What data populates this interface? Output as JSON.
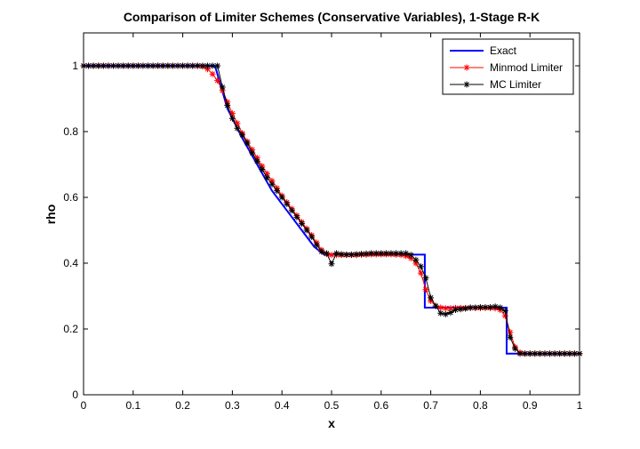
{
  "chart_data": {
    "type": "line",
    "title": "Comparison of Limiter Schemes (Conservative Variables), 1-Stage R-K",
    "xlabel": "x",
    "ylabel": "rho",
    "xlim": [
      0,
      1
    ],
    "ylim": [
      0,
      1.1
    ],
    "x_ticks": [
      "0",
      "0.1",
      "0.2",
      "0.3",
      "0.4",
      "0.5",
      "0.6",
      "0.7",
      "0.8",
      "0.9",
      "1"
    ],
    "y_ticks": [
      "0",
      "0.2",
      "0.4",
      "0.6",
      "0.8",
      "1"
    ],
    "grid": false,
    "legend_position": "top-right",
    "series": [
      {
        "name": "Exact",
        "color": "#0000ff",
        "marker": "none",
        "x": [
          0,
          0.265,
          0.29,
          0.32,
          0.35,
          0.38,
          0.41,
          0.44,
          0.465,
          0.485,
          0.688,
          0.688,
          0.853,
          0.853,
          1.0
        ],
        "y": [
          1.0,
          1.0,
          0.87,
          0.78,
          0.7,
          0.62,
          0.56,
          0.5,
          0.45,
          0.426,
          0.426,
          0.265,
          0.265,
          0.125,
          0.125
        ]
      },
      {
        "name": "Minmod Limiter",
        "color": "#ff0000",
        "marker": "star",
        "x": [
          0,
          0.01,
          0.02,
          0.03,
          0.04,
          0.05,
          0.06,
          0.07,
          0.08,
          0.09,
          0.1,
          0.11,
          0.12,
          0.13,
          0.14,
          0.15,
          0.16,
          0.17,
          0.18,
          0.19,
          0.2,
          0.21,
          0.22,
          0.23,
          0.24,
          0.25,
          0.26,
          0.27,
          0.28,
          0.29,
          0.3,
          0.31,
          0.32,
          0.33,
          0.34,
          0.35,
          0.36,
          0.37,
          0.38,
          0.39,
          0.4,
          0.41,
          0.42,
          0.43,
          0.44,
          0.45,
          0.46,
          0.47,
          0.48,
          0.49,
          0.5,
          0.51,
          0.52,
          0.53,
          0.54,
          0.55,
          0.56,
          0.57,
          0.58,
          0.59,
          0.6,
          0.61,
          0.62,
          0.63,
          0.64,
          0.65,
          0.66,
          0.67,
          0.68,
          0.69,
          0.7,
          0.71,
          0.72,
          0.73,
          0.74,
          0.75,
          0.76,
          0.77,
          0.78,
          0.79,
          0.8,
          0.81,
          0.82,
          0.83,
          0.84,
          0.85,
          0.86,
          0.87,
          0.88,
          0.89,
          0.9,
          0.91,
          0.92,
          0.93,
          0.94,
          0.95,
          0.96,
          0.97,
          0.98,
          0.99,
          1.0
        ],
        "y": [
          1.0,
          1.0,
          1.0,
          1.0,
          1.0,
          1.0,
          1.0,
          1.0,
          1.0,
          1.0,
          1.0,
          1.0,
          1.0,
          1.0,
          1.0,
          1.0,
          1.0,
          1.0,
          1.0,
          1.0,
          1.0,
          1.0,
          1.0,
          1.0,
          0.998,
          0.99,
          0.975,
          0.955,
          0.925,
          0.89,
          0.855,
          0.825,
          0.795,
          0.77,
          0.745,
          0.72,
          0.695,
          0.672,
          0.65,
          0.628,
          0.605,
          0.585,
          0.565,
          0.545,
          0.525,
          0.505,
          0.485,
          0.462,
          0.44,
          0.428,
          0.425,
          0.425,
          0.425,
          0.425,
          0.425,
          0.425,
          0.426,
          0.426,
          0.427,
          0.427,
          0.427,
          0.427,
          0.427,
          0.426,
          0.425,
          0.422,
          0.415,
          0.4,
          0.37,
          0.32,
          0.285,
          0.27,
          0.265,
          0.263,
          0.263,
          0.264,
          0.264,
          0.264,
          0.264,
          0.264,
          0.264,
          0.264,
          0.264,
          0.263,
          0.258,
          0.24,
          0.19,
          0.145,
          0.128,
          0.125,
          0.125,
          0.125,
          0.125,
          0.125,
          0.125,
          0.125,
          0.125,
          0.125,
          0.125,
          0.125,
          0.125
        ]
      },
      {
        "name": "MC Limiter",
        "color": "#000000",
        "marker": "star",
        "x": [
          0,
          0.01,
          0.02,
          0.03,
          0.04,
          0.05,
          0.06,
          0.07,
          0.08,
          0.09,
          0.1,
          0.11,
          0.12,
          0.13,
          0.14,
          0.15,
          0.16,
          0.17,
          0.18,
          0.19,
          0.2,
          0.21,
          0.22,
          0.23,
          0.24,
          0.25,
          0.26,
          0.27,
          0.28,
          0.29,
          0.3,
          0.31,
          0.32,
          0.33,
          0.34,
          0.35,
          0.36,
          0.37,
          0.38,
          0.39,
          0.4,
          0.41,
          0.42,
          0.43,
          0.44,
          0.45,
          0.46,
          0.47,
          0.48,
          0.49,
          0.5,
          0.51,
          0.52,
          0.53,
          0.54,
          0.55,
          0.56,
          0.57,
          0.58,
          0.59,
          0.6,
          0.61,
          0.62,
          0.63,
          0.64,
          0.65,
          0.66,
          0.67,
          0.68,
          0.69,
          0.7,
          0.71,
          0.72,
          0.73,
          0.74,
          0.75,
          0.76,
          0.77,
          0.78,
          0.79,
          0.8,
          0.81,
          0.82,
          0.83,
          0.84,
          0.85,
          0.86,
          0.87,
          0.88,
          0.89,
          0.9,
          0.91,
          0.92,
          0.93,
          0.94,
          0.95,
          0.96,
          0.97,
          0.98,
          0.99,
          1.0
        ],
        "y": [
          1.0,
          1.0,
          1.0,
          1.0,
          1.0,
          1.0,
          1.0,
          1.0,
          1.0,
          1.0,
          1.0,
          1.0,
          1.0,
          1.0,
          1.0,
          1.0,
          1.0,
          1.0,
          1.0,
          1.0,
          1.0,
          1.0,
          1.0,
          1.0,
          1.0,
          1.0,
          1.0,
          1.0,
          0.935,
          0.88,
          0.84,
          0.81,
          0.79,
          0.765,
          0.735,
          0.71,
          0.685,
          0.66,
          0.64,
          0.62,
          0.6,
          0.58,
          0.56,
          0.54,
          0.52,
          0.5,
          0.48,
          0.455,
          0.435,
          0.43,
          0.398,
          0.43,
          0.427,
          0.426,
          0.426,
          0.427,
          0.428,
          0.429,
          0.43,
          0.43,
          0.43,
          0.43,
          0.43,
          0.43,
          0.43,
          0.43,
          0.425,
          0.41,
          0.39,
          0.355,
          0.295,
          0.27,
          0.248,
          0.245,
          0.25,
          0.258,
          0.26,
          0.262,
          0.265,
          0.265,
          0.266,
          0.266,
          0.266,
          0.268,
          0.265,
          0.255,
          0.175,
          0.14,
          0.125,
          0.125,
          0.125,
          0.125,
          0.125,
          0.125,
          0.125,
          0.125,
          0.125,
          0.125,
          0.125,
          0.125,
          0.125
        ]
      }
    ]
  }
}
